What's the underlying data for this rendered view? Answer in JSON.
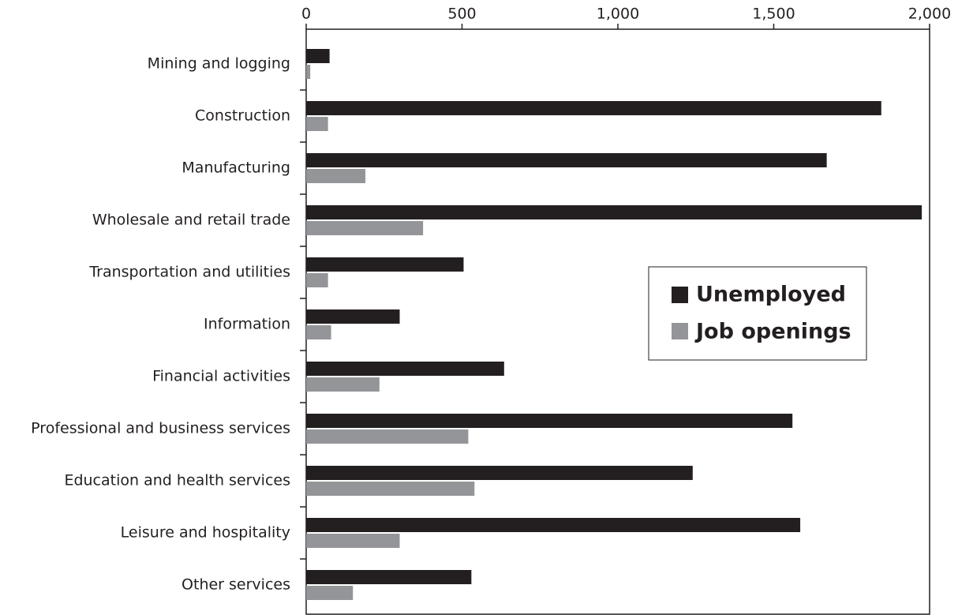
{
  "chart_data": {
    "type": "bar",
    "orientation": "horizontal",
    "categories": [
      "Mining and logging",
      "Construction",
      "Manufacturing",
      "Wholesale and retail trade",
      "Transportation and utilities",
      "Information",
      "Financial activities",
      "Professional and business services",
      "Education and health services",
      "Leisure and hospitality",
      "Other services"
    ],
    "series": [
      {
        "name": "Unemployed",
        "color": "#231f20",
        "values": [
          75,
          1845,
          1670,
          1975,
          505,
          300,
          635,
          1560,
          1240,
          1585,
          530
        ]
      },
      {
        "name": "Job openings",
        "color": "#939598",
        "values": [
          13,
          70,
          190,
          375,
          70,
          80,
          235,
          520,
          540,
          300,
          150
        ]
      }
    ],
    "xlim": [
      0,
      2000
    ],
    "xticks": [
      0,
      500,
      {
        "value": 1000,
        "label": "1,000"
      },
      {
        "value": 1500,
        "label": "1,500"
      },
      {
        "value": 2000,
        "label": "2,000"
      }
    ],
    "grid": false
  }
}
